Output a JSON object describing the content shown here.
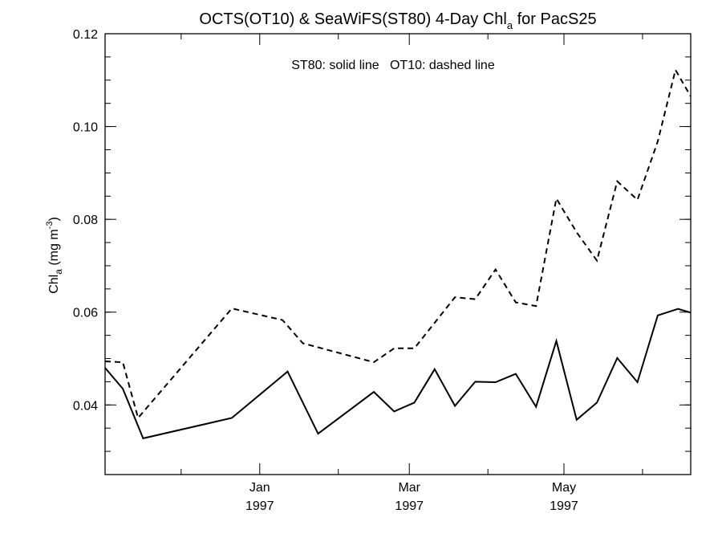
{
  "chart_data": {
    "type": "line",
    "title_main": "OCTS(OT10) & SeaWiFS(ST80) 4-Day Chl",
    "title_sub": "a",
    "title_tail": " for PacS25",
    "ylabel_main": "Chl",
    "ylabel_sub": "a",
    "ylabel_tail": " (mg m",
    "ylabel_sup": "-3",
    "ylabel_end": ")",
    "annotation": "ST80: solid line   OT10: dashed line",
    "ylim": [
      0.025,
      0.12
    ],
    "xlim": [
      "1996-11-01",
      "1997-06-20"
    ],
    "y_ticks": [
      {
        "value": 0.04,
        "label": "0.04"
      },
      {
        "value": 0.06,
        "label": "0.06"
      },
      {
        "value": 0.08,
        "label": "0.08"
      },
      {
        "value": 0.1,
        "label": "0.10"
      },
      {
        "value": 0.12,
        "label": "0.12"
      }
    ],
    "y_minor_step": 0.005,
    "x_ticks": [
      {
        "date": "1997-01-01",
        "month": "Jan",
        "year": "1997"
      },
      {
        "date": "1997-03-01",
        "month": "Mar",
        "year": "1997"
      },
      {
        "date": "1997-05-01",
        "month": "May",
        "year": "1997"
      }
    ],
    "x_minor_dates": [
      "1996-12-01",
      "1997-02-01",
      "1997-04-01",
      "1997-06-01"
    ],
    "series": [
      {
        "name": "ST80",
        "style": "solid",
        "color": "#000000",
        "points": [
          [
            "1996-11-01",
            0.048
          ],
          [
            "1996-11-08",
            0.0435
          ],
          [
            "1996-11-16",
            0.0328
          ],
          [
            "1996-12-21",
            0.0372
          ],
          [
            "1997-01-12",
            0.0472
          ],
          [
            "1997-01-24",
            0.0338
          ],
          [
            "1997-02-15",
            0.0428
          ],
          [
            "1997-02-23",
            0.0386
          ],
          [
            "1997-03-03",
            0.0405
          ],
          [
            "1997-03-11",
            0.0477
          ],
          [
            "1997-03-19",
            0.0398
          ],
          [
            "1997-03-27",
            0.045
          ],
          [
            "1997-04-04",
            0.0449
          ],
          [
            "1997-04-12",
            0.0467
          ],
          [
            "1997-04-20",
            0.0396
          ],
          [
            "1997-04-28",
            0.0538
          ],
          [
            "1997-05-06",
            0.0368
          ],
          [
            "1997-05-14",
            0.0405
          ],
          [
            "1997-05-22",
            0.0501
          ],
          [
            "1997-05-30",
            0.0449
          ],
          [
            "1997-06-07",
            0.0593
          ],
          [
            "1997-06-15",
            0.0607
          ],
          [
            "1997-06-20",
            0.0599
          ]
        ]
      },
      {
        "name": "OT10",
        "style": "dashed",
        "color": "#000000",
        "points": [
          [
            "1996-11-01",
            0.0494
          ],
          [
            "1996-11-08",
            0.0492
          ],
          [
            "1996-11-14",
            0.0372
          ],
          [
            "1996-12-21",
            0.0608
          ],
          [
            "1997-01-10",
            0.0583
          ],
          [
            "1997-01-18",
            0.0533
          ],
          [
            "1997-02-15",
            0.0492
          ],
          [
            "1997-02-23",
            0.0522
          ],
          [
            "1997-03-03",
            0.0522
          ],
          [
            "1997-03-19",
            0.0632
          ],
          [
            "1997-03-27",
            0.0628
          ],
          [
            "1997-04-04",
            0.0692
          ],
          [
            "1997-04-12",
            0.0621
          ],
          [
            "1997-04-20",
            0.0613
          ],
          [
            "1997-04-28",
            0.0845
          ],
          [
            "1997-05-06",
            0.0772
          ],
          [
            "1997-05-14",
            0.0711
          ],
          [
            "1997-05-22",
            0.0882
          ],
          [
            "1997-05-30",
            0.0842
          ],
          [
            "1997-06-07",
            0.0968
          ],
          [
            "1997-06-14",
            0.1122
          ],
          [
            "1997-06-20",
            0.1065
          ]
        ]
      }
    ]
  }
}
